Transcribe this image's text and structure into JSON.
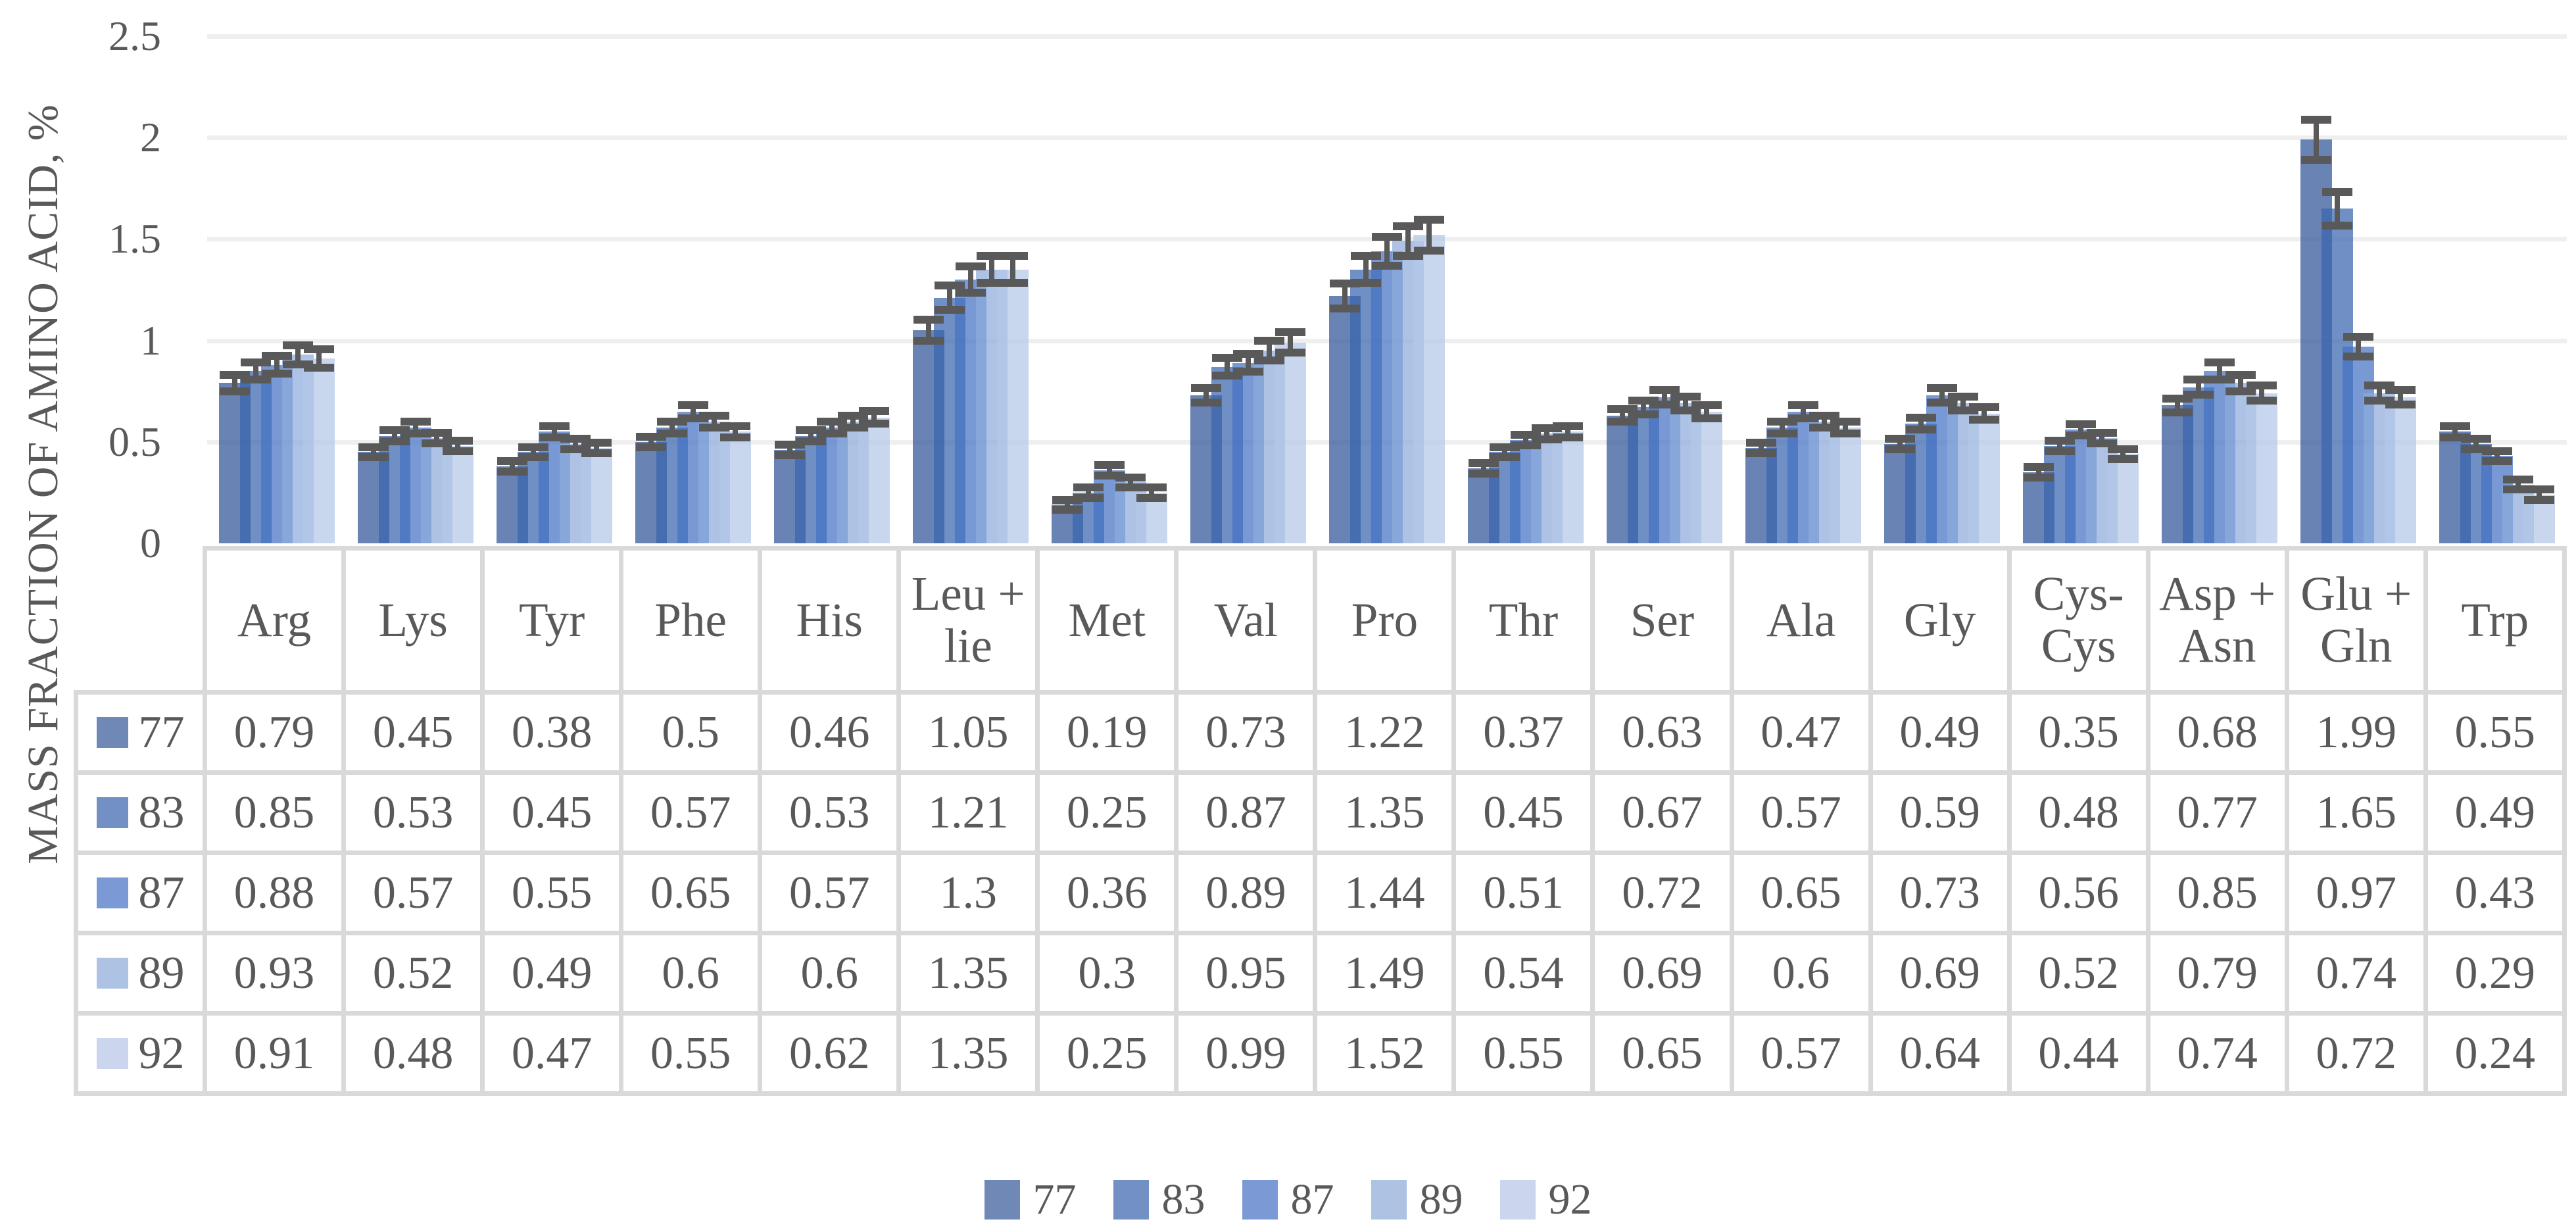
{
  "chart_data": {
    "type": "bar",
    "title": "",
    "xlabel": "",
    "ylabel": "MASS FRACTION OF AMINO ACID, %",
    "ylim": [
      0,
      2.5
    ],
    "y_ticks": [
      "2.5",
      "2",
      "1.5",
      "1",
      "0.5",
      "0"
    ],
    "grid": true,
    "legend_position": "bottom",
    "data_table_shown": true,
    "categories": [
      "Arg",
      "Lys",
      "Tyr",
      "Phe",
      "His",
      "Leu + lie",
      "Met",
      "Val",
      "Pro",
      "Thr",
      "Ser",
      "Ala",
      "Gly",
      "Cys-Cys",
      "Asp + Asn",
      "Glu + Gln",
      "Trp"
    ],
    "category_header_lines": [
      [
        "Arg"
      ],
      [
        "Lys"
      ],
      [
        "Tyr"
      ],
      [
        "Phe"
      ],
      [
        "His"
      ],
      [
        "Leu +",
        "lie"
      ],
      [
        "Met"
      ],
      [
        "Val"
      ],
      [
        "Pro"
      ],
      [
        "Thr"
      ],
      [
        "Ser"
      ],
      [
        "Ala"
      ],
      [
        "Gly"
      ],
      [
        "Cys-",
        "Cys"
      ],
      [
        "Asp +",
        "Asn"
      ],
      [
        "Glu +",
        "Gln"
      ],
      [
        "Trp"
      ]
    ],
    "series": [
      {
        "name": "77",
        "key_color": "#6f88b6",
        "fill_rgb": "47,85,151",
        "values": [
          "0.79",
          "0.45",
          "0.38",
          "0.5",
          "0.46",
          "1.05",
          "0.19",
          "0.73",
          "1.22",
          "0.37",
          "0.63",
          "0.47",
          "0.49",
          "0.35",
          "0.68",
          "1.99",
          "0.55"
        ]
      },
      {
        "name": "83",
        "key_color": "#7390c5",
        "fill_rgb": "55,100,175",
        "values": [
          "0.85",
          "0.53",
          "0.45",
          "0.57",
          "0.53",
          "1.21",
          "0.25",
          "0.87",
          "1.35",
          "0.45",
          "0.67",
          "0.57",
          "0.59",
          "0.48",
          "0.77",
          "1.65",
          "0.49"
        ]
      },
      {
        "name": "87",
        "key_color": "#7b9ad5",
        "fill_rgb": "68,114,196",
        "values": [
          "0.88",
          "0.57",
          "0.55",
          "0.65",
          "0.57",
          "1.3",
          "0.36",
          "0.89",
          "1.44",
          "0.51",
          "0.72",
          "0.65",
          "0.73",
          "0.56",
          "0.85",
          "0.97",
          "0.43"
        ]
      },
      {
        "name": "89",
        "key_color": "#aec2e4",
        "fill_rgb": "142,170,219",
        "values": [
          "0.93",
          "0.52",
          "0.49",
          "0.6",
          "0.6",
          "1.35",
          "0.3",
          "0.95",
          "1.49",
          "0.54",
          "0.69",
          "0.6",
          "0.69",
          "0.52",
          "0.79",
          "0.74",
          "0.29"
        ]
      },
      {
        "name": "92",
        "key_color": "#cbd6ee",
        "fill_rgb": "180,199,231",
        "values": [
          "0.91",
          "0.48",
          "0.47",
          "0.55",
          "0.62",
          "1.35",
          "0.25",
          "0.99",
          "1.52",
          "0.55",
          "0.65",
          "0.57",
          "0.64",
          "0.44",
          "0.74",
          "0.72",
          "0.24"
        ]
      }
    ],
    "error_bars": {
      "visible": true,
      "estimated_from_pixels": true,
      "fraction_of_value": 0.05,
      "min_value": 0.025
    },
    "colors": {
      "error_bar": "#595959",
      "gridline": "#efefef",
      "table_border": "#d9d9d9",
      "text": "#595959",
      "bar_alpha": 0.72
    }
  },
  "legend": {
    "items": [
      "77",
      "83",
      "87",
      "89",
      "92"
    ]
  }
}
